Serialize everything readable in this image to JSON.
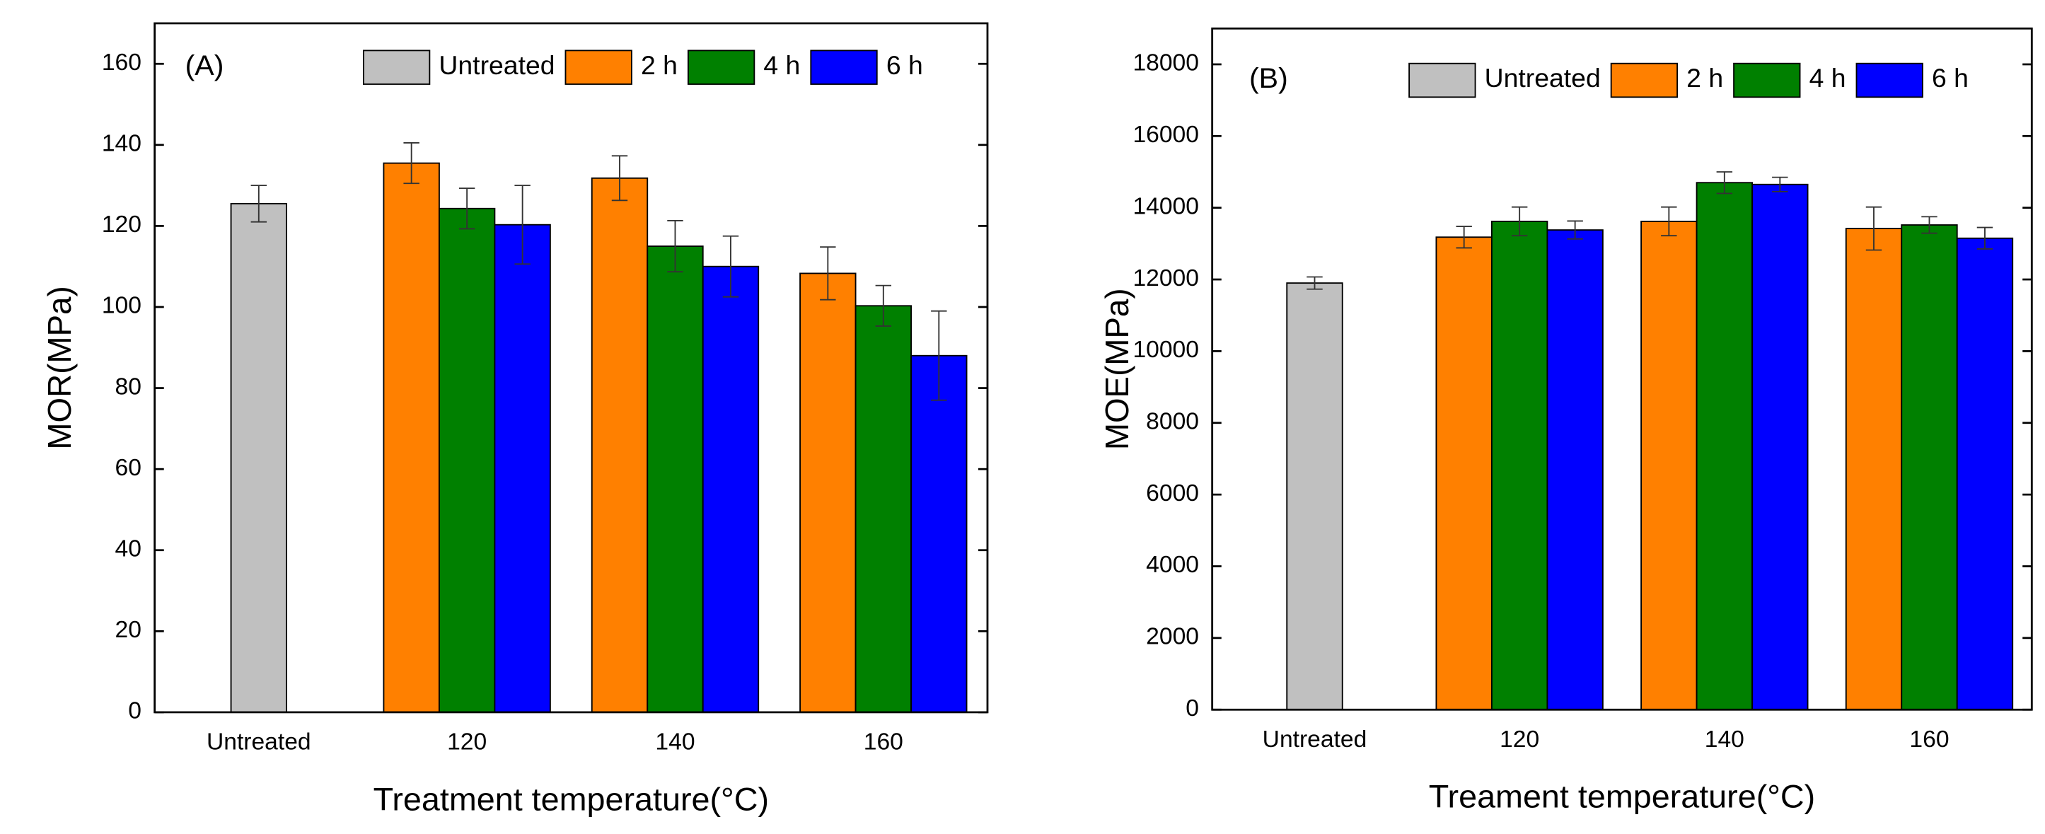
{
  "chart_data": [
    {
      "type": "bar",
      "label": "(A)",
      "ylabel": "MOR(MPa)",
      "xlabel": "Treatment temperature(°C)",
      "categories": [
        "Untreated",
        "120",
        "140",
        "160"
      ],
      "series": [
        {
          "name": "Untreated",
          "color": "#c0c0c0",
          "values": [
            125.5,
            null,
            null,
            null
          ],
          "errors": [
            4.5,
            null,
            null,
            null
          ]
        },
        {
          "name": "2 h",
          "color": "#ff8000",
          "values": [
            null,
            135.5,
            131.8,
            108.3
          ],
          "errors": [
            null,
            5,
            5.5,
            6.5
          ]
        },
        {
          "name": "4 h",
          "color": "#008000",
          "values": [
            null,
            124.3,
            115,
            100.3
          ],
          "errors": [
            null,
            5,
            6.3,
            5
          ]
        },
        {
          "name": "6 h",
          "color": "#0000ff",
          "values": [
            null,
            120.3,
            110,
            88
          ],
          "errors": [
            null,
            9.7,
            7.5,
            11
          ]
        }
      ],
      "ylim": [
        0,
        170
      ],
      "yticks": [
        0,
        20,
        40,
        60,
        80,
        100,
        120,
        140,
        160
      ],
      "legend": "top"
    },
    {
      "type": "bar",
      "label": "(B)",
      "ylabel": "MOE(MPa)",
      "xlabel": "Treament temperature(°C)",
      "categories": [
        "Untreated",
        "120",
        "140",
        "160"
      ],
      "series": [
        {
          "name": "Untreated",
          "color": "#c0c0c0",
          "values": [
            11900,
            null,
            null,
            null
          ],
          "errors": [
            170,
            null,
            null,
            null
          ]
        },
        {
          "name": "2 h",
          "color": "#ff8000",
          "values": [
            null,
            13180,
            13620,
            13420
          ],
          "errors": [
            null,
            300,
            400,
            600
          ]
        },
        {
          "name": "4 h",
          "color": "#008000",
          "values": [
            null,
            13620,
            14700,
            13520
          ],
          "errors": [
            null,
            400,
            300,
            230
          ]
        },
        {
          "name": "6 h",
          "color": "#0000ff",
          "values": [
            null,
            13380,
            14650,
            13150
          ],
          "errors": [
            null,
            250,
            200,
            300
          ]
        }
      ],
      "ylim": [
        0,
        19000
      ],
      "yticks": [
        0,
        2000,
        4000,
        6000,
        8000,
        10000,
        12000,
        14000,
        16000,
        18000
      ],
      "legend": "top"
    }
  ]
}
